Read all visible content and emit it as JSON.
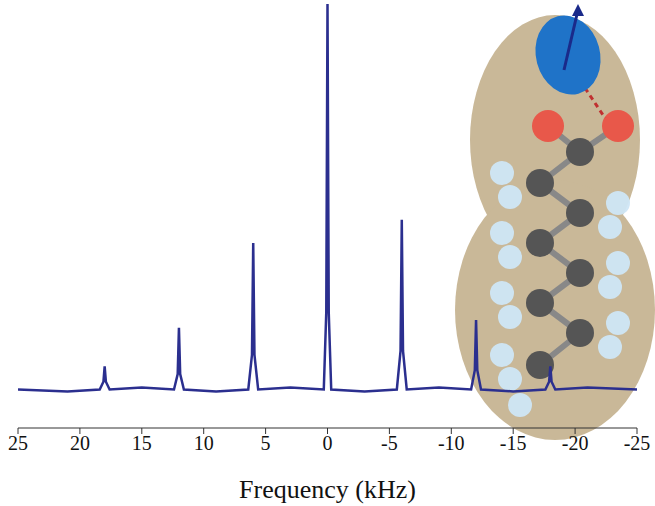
{
  "chart_data": {
    "type": "line",
    "x_label": "Frequency (kHz)",
    "x": [
      -25,
      -21,
      -18.4,
      -18.1,
      -18.0,
      -17.9,
      -17.6,
      -15,
      -12.4,
      -12.1,
      -12.0,
      -11.9,
      -11.6,
      -9,
      -6.4,
      -6.1,
      -6.0,
      -5.9,
      -5.6,
      -3,
      -0.3,
      -0.1,
      0,
      0.1,
      0.3,
      3,
      5.6,
      5.9,
      6.0,
      6.1,
      6.4,
      9,
      11.6,
      11.9,
      12.0,
      12.1,
      12.4,
      15,
      17.6,
      17.9,
      18.0,
      18.1,
      18.4,
      21,
      25
    ],
    "values": [
      0,
      0.005,
      0,
      0.02,
      0.06,
      0.02,
      0,
      -0.005,
      0,
      0.05,
      0.18,
      0.05,
      0,
      0.005,
      0,
      0.1,
      0.44,
      0.1,
      0,
      -0.005,
      0,
      0.2,
      1.0,
      0.2,
      0,
      0.005,
      0,
      0.09,
      0.38,
      0.09,
      0,
      -0.005,
      0,
      0.04,
      0.16,
      0.04,
      0,
      0.005,
      0,
      0.02,
      0.06,
      0.02,
      0,
      -0.005,
      0
    ],
    "color": "#2b2f8f",
    "xlim": [
      25,
      -25
    ],
    "xticks": [
      25,
      20,
      15,
      10,
      5,
      0,
      -5,
      -10,
      -15,
      -20,
      -25
    ],
    "ylim": [
      -0.1,
      1.0
    ],
    "tick_labels": "x",
    "grid": false
  }
}
